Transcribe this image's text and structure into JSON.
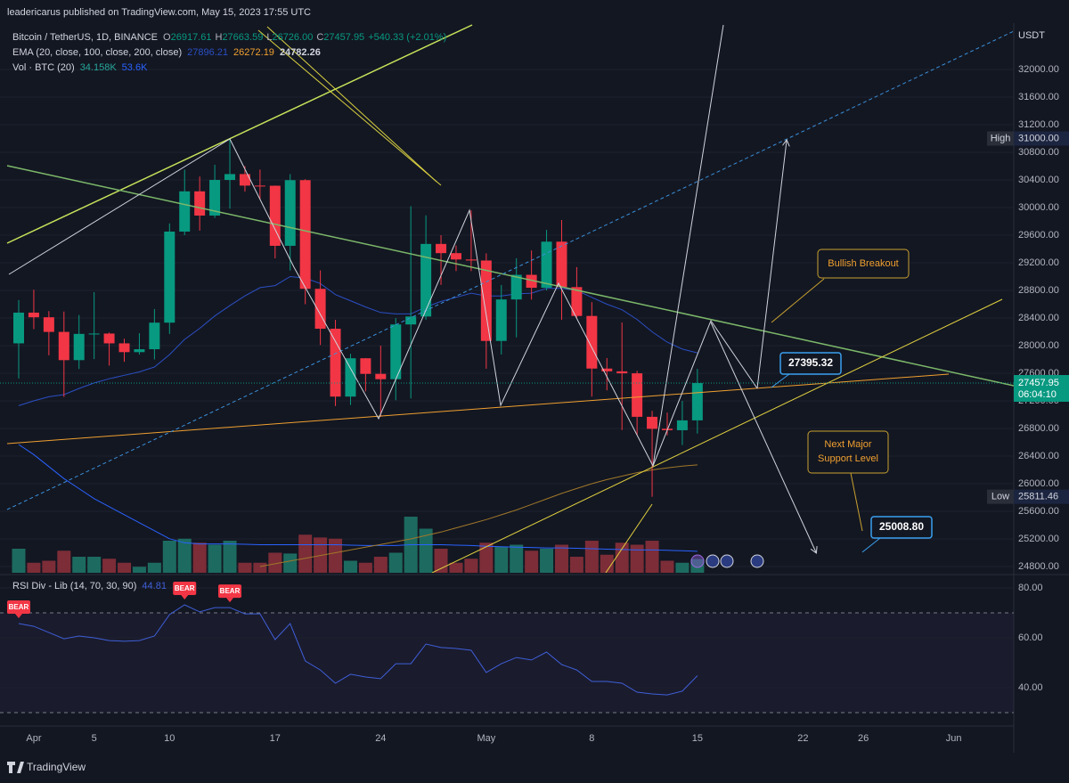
{
  "header": {
    "title": "leadericarus published on TradingView.com, May 15, 2023 17:55 UTC"
  },
  "legend": {
    "symbol": "Bitcoin / TetherUS, 1D, BINANCE",
    "ohlc": [
      {
        "key": "O",
        "value": "26917.61"
      },
      {
        "key": "H",
        "value": "27663.59"
      },
      {
        "key": "L",
        "value": "26726.00"
      },
      {
        "key": "C",
        "value": "27457.95"
      }
    ],
    "change": "+540.33 (+2.01%)",
    "ema_title": "EMA (20, close, 100, close, 200, close)",
    "ema_values": [
      "27896.21",
      "26272.19",
      "24782.26"
    ],
    "vol_title": "Vol · BTC (20)",
    "vol_values": [
      "34.158K",
      "53.6K"
    ],
    "rsi_title": "RSI Div - Lib (14, 70, 30, 90)"
  },
  "footer": {
    "brand": "TradingView"
  },
  "chart_data": {
    "type": "candlestick",
    "currency": "USDT",
    "categories": [
      null,
      "Apr",
      null,
      null,
      null,
      "5",
      null,
      null,
      null,
      null,
      "10",
      null,
      null,
      null,
      null,
      null,
      null,
      "17",
      null,
      null,
      null,
      null,
      null,
      null,
      "24",
      null,
      null,
      null,
      null,
      null,
      null,
      "May",
      null,
      null,
      null,
      null,
      null,
      null,
      "8",
      null,
      null,
      null,
      null,
      null,
      null,
      "15",
      null,
      null,
      null,
      null,
      null,
      null,
      "22",
      null,
      null,
      null,
      "26",
      null,
      null,
      null,
      null,
      null,
      "Jun",
      null,
      null,
      null,
      null
    ],
    "open": [
      28033,
      28478,
      28411,
      28199,
      27790,
      28170,
      28175,
      28033,
      27906,
      27948,
      28333,
      29652,
      30235,
      29884,
      30400,
      30485,
      30318,
      30316,
      29446,
      30397,
      28823,
      28245,
      27262,
      27817,
      27591,
      27514,
      28307,
      28422,
      29473,
      29340,
      29248,
      29233,
      28068,
      28669,
      29026,
      28838,
      29506,
      28848,
      28430,
      27668,
      27628,
      27599,
      26969,
      26795,
      26775,
      26917.61,
      null,
      null,
      null,
      null,
      null,
      null,
      null,
      null,
      null,
      null,
      null,
      null,
      null,
      null,
      null,
      null,
      null,
      null,
      null,
      null,
      null
    ],
    "high": [
      28660,
      28810,
      28500,
      28494,
      28444,
      28775,
      28190,
      28100,
      28180,
      28530,
      29770,
      30550,
      30450,
      30620,
      31000,
      30600,
      30550,
      30320,
      30485,
      30412,
      29090,
      28374,
      27882,
      27820,
      28000,
      28400,
      30020,
      29887,
      29600,
      29450,
      29960,
      29337,
      28879,
      29266,
      29379,
      29677,
      29820,
      29138,
      28630,
      27820,
      28336,
      27636,
      27055,
      27030,
      27200,
      27663.59,
      null,
      null,
      null,
      null,
      null,
      null,
      null,
      null,
      null,
      null,
      null,
      null,
      null,
      null,
      null,
      null,
      null,
      null,
      null,
      null,
      null
    ],
    "low": [
      27525,
      28240,
      27860,
      27257,
      27662,
      27805,
      27711,
      27766,
      27870,
      27800,
      28170,
      29600,
      29666,
      29850,
      29985,
      30231,
      30120,
      29265,
      29088,
      28600,
      28010,
      27125,
      27140,
      27337,
      26970,
      27210,
      27235,
      28375,
      28880,
      29080,
      29080,
      27666,
      27872,
      28120,
      28667,
      28800,
      28375,
      28400,
      27262,
      27353,
      26777,
      26700,
      25811.46,
      26700,
      26560,
      26726,
      null,
      null,
      null,
      null,
      null,
      null,
      null,
      null,
      null,
      null,
      null,
      null,
      null,
      null,
      null,
      null,
      null,
      null,
      null,
      null,
      null
    ],
    "close": [
      28478,
      28411,
      28199,
      27790,
      28170,
      28175,
      28033,
      27906,
      27948,
      28333,
      29652,
      30235,
      29884,
      30400,
      30485,
      30318,
      30316,
      29446,
      30397,
      28823,
      28245,
      27262,
      27817,
      27591,
      27514,
      28307,
      28422,
      29473,
      29340,
      29248,
      29233,
      28068,
      28669,
      29026,
      28838,
      29506,
      28848,
      28430,
      27668,
      27628,
      27599,
      26969,
      26795,
      26775,
      26917.61,
      27457.95,
      null,
      null,
      null,
      null,
      null,
      null,
      null,
      null,
      null,
      null,
      null,
      null,
      null,
      null,
      null,
      null,
      null,
      null,
      null,
      null,
      null
    ],
    "up_color": "#089981",
    "down_color": "#f23645",
    "ylim": [
      24710,
      32671
    ],
    "yticks": [
      {
        "value": 24800,
        "label": "24800.00"
      },
      {
        "value": 25200,
        "label": "25200.00"
      },
      {
        "value": 25600,
        "label": "25600.00"
      },
      {
        "value": 26000,
        "label": "26000.00"
      },
      {
        "value": 26400,
        "label": "26400.00"
      },
      {
        "value": 26800,
        "label": "26800.00"
      },
      {
        "value": 27200,
        "label": "27200.00"
      },
      {
        "value": 27600,
        "label": "27600.00"
      },
      {
        "value": 28000,
        "label": "28000.00"
      },
      {
        "value": 28400,
        "label": "28400.00"
      },
      {
        "value": 28800,
        "label": "28800.00"
      },
      {
        "value": 29200,
        "label": "29200.00"
      },
      {
        "value": 29600,
        "label": "29600.00"
      },
      {
        "value": 30000,
        "label": "30000.00"
      },
      {
        "value": 30400,
        "label": "30400.00"
      },
      {
        "value": 30800,
        "label": "30800.00"
      },
      {
        "value": 31200,
        "label": "31200.00"
      },
      {
        "value": 31600,
        "label": "31600.00"
      },
      {
        "value": 32000,
        "label": "32000.00"
      }
    ],
    "grid": true,
    "ema": [
      {
        "color": "#2b4fc4",
        "values": [
          27130,
          27200,
          27260,
          27290,
          27380,
          27460,
          27520,
          27570,
          27620,
          27690,
          27870,
          28090,
          28250,
          28430,
          28580,
          28720,
          28840,
          28870,
          29000,
          28980,
          28900,
          28740,
          28650,
          28560,
          28480,
          28460,
          28460,
          28560,
          28640,
          28700,
          28760,
          28720,
          28720,
          28750,
          28760,
          28830,
          28830,
          28800,
          28700,
          28600,
          28520,
          28380,
          28200,
          28050,
          27950,
          27896.21,
          null,
          null,
          null,
          null,
          null,
          null,
          null,
          null,
          null,
          null,
          null,
          null,
          null,
          null,
          null,
          null,
          null,
          null,
          null,
          null,
          null
        ]
      },
      {
        "color": "#a0782a",
        "values": [
          null,
          null,
          null,
          null,
          null,
          null,
          null,
          null,
          null,
          null,
          null,
          null,
          null,
          null,
          null,
          null,
          24800,
          24840,
          24880,
          24920,
          24960,
          25000,
          25040,
          25080,
          25120,
          25160,
          25200,
          25250,
          25300,
          25360,
          25420,
          25480,
          25550,
          25620,
          25700,
          25780,
          25860,
          25930,
          26000,
          26060,
          26110,
          26160,
          26200,
          26230,
          26255,
          26272.19,
          null,
          null,
          null,
          null,
          null,
          null,
          null,
          null,
          null,
          null,
          null,
          null,
          null,
          null,
          null,
          null,
          null,
          null,
          null,
          null,
          null
        ]
      }
    ],
    "volume": {
      "up_color": "#1d6b60",
      "down_color": "#7c2d37",
      "ma_color": "#2962ff",
      "values": [
        60,
        25,
        30,
        55,
        40,
        40,
        35,
        25,
        15,
        25,
        80,
        85,
        75,
        70,
        80,
        25,
        25,
        50,
        48,
        95,
        88,
        85,
        30,
        25,
        40,
        50,
        140,
        110,
        60,
        25,
        35,
        75,
        65,
        70,
        55,
        60,
        70,
        40,
        80,
        45,
        75,
        70,
        80,
        30,
        25,
        34.158,
        null,
        null,
        null,
        null,
        null,
        null,
        null,
        null,
        null,
        null,
        null,
        null,
        null,
        null,
        null,
        null,
        null,
        null,
        null,
        null,
        null
      ],
      "ma": [
        320,
        295,
        265,
        235,
        210,
        185,
        165,
        145,
        125,
        105,
        85,
        75,
        72,
        72,
        72,
        71,
        70,
        70,
        70,
        70,
        70,
        70,
        69,
        68,
        68,
        68,
        70,
        70,
        70,
        69,
        68,
        66,
        65,
        64,
        63,
        62,
        62,
        61,
        60,
        59,
        58,
        57,
        57,
        56,
        55,
        53.6,
        null,
        null,
        null,
        null,
        null,
        null,
        null,
        null,
        null,
        null,
        null,
        null,
        null,
        null,
        null,
        null,
        null,
        null,
        null,
        null,
        null
      ]
    },
    "rsi": {
      "color": "#3f5fd8",
      "values": [
        65.7,
        64.6,
        62.1,
        59.6,
        60.7,
        60.0,
        58.9,
        58.6,
        58.9,
        60.7,
        69.3,
        73.2,
        70.4,
        72.1,
        72.1,
        69.6,
        69.6,
        59.3,
        65.7,
        50.7,
        47.1,
        41.8,
        45.4,
        44.3,
        43.6,
        49.6,
        49.6,
        57.5,
        56.1,
        55.7,
        55.0,
        46.1,
        49.6,
        52.1,
        51.1,
        54.3,
        49.3,
        47.1,
        42.5,
        42.5,
        41.8,
        38.2,
        37.5,
        37.1,
        38.6,
        44.81,
        null,
        null,
        null,
        null,
        null,
        null,
        null,
        null,
        null,
        null,
        null,
        null,
        null,
        null,
        null,
        null,
        null,
        null,
        null,
        null,
        null
      ],
      "signals": [
        "BEAR",
        null,
        null,
        null,
        null,
        null,
        null,
        null,
        null,
        null,
        null,
        "BEAR",
        null,
        null,
        "BEAR",
        null,
        null,
        null,
        null,
        null,
        null,
        null,
        null,
        null,
        null,
        null,
        null,
        null,
        null,
        null,
        null,
        null,
        null,
        null,
        null,
        null,
        null,
        null,
        null,
        null,
        null,
        null,
        null,
        null,
        null,
        null,
        null,
        null,
        null,
        null,
        null,
        null,
        null,
        null,
        null,
        null,
        null,
        null,
        null,
        null,
        null,
        null,
        null,
        null,
        null,
        null,
        null
      ],
      "ylim": [
        24.64,
        84.64
      ],
      "levels": [
        70,
        30
      ],
      "yticks": [
        {
          "value": 40,
          "label": "40.00"
        },
        {
          "value": 60,
          "label": "60.00"
        },
        {
          "value": 80,
          "label": "80.00"
        }
      ]
    },
    "price_tag": {
      "countdown": "06:04:10"
    },
    "price_labels": [
      {
        "text": "High",
        "price": {
          "value": 31000,
          "label": "31000.00"
        }
      },
      {
        "text": "Low",
        "price": 25811.46
      }
    ],
    "annotations": {
      "bullish": "Bullish Breakout",
      "support": [
        "Next Major",
        "Support Level"
      ],
      "target_price": 27395.32,
      "support_price": {
        "value": 25008.8,
        "label": "25008.80"
      }
    }
  }
}
